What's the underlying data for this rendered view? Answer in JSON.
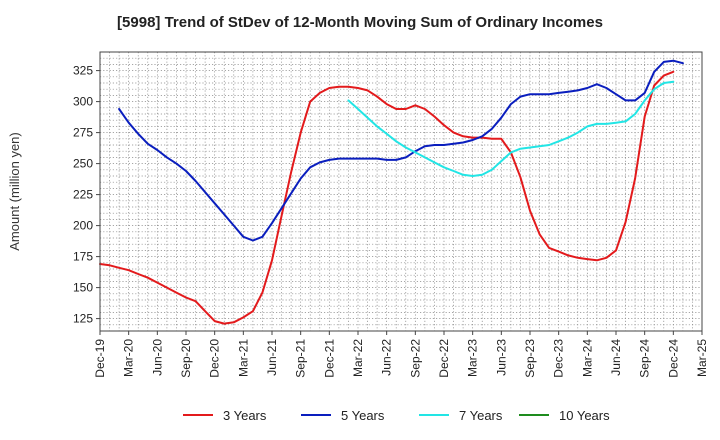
{
  "chart_data": {
    "type": "line",
    "title": "[5998]  Trend of StDev of 12-Month Moving Sum of Ordinary Incomes",
    "ylabel": "Amount (million yen)",
    "xlabel": "",
    "ylim": [
      115,
      340
    ],
    "yticks": [
      125,
      150,
      175,
      200,
      225,
      250,
      275,
      300,
      325
    ],
    "xlim": [
      "2019-12",
      "2025-03"
    ],
    "xticks": [
      "Dec-19",
      "Mar-20",
      "Jun-20",
      "Sep-20",
      "Dec-20",
      "Mar-21",
      "Jun-21",
      "Sep-21",
      "Dec-21",
      "Mar-22",
      "Jun-22",
      "Sep-22",
      "Dec-22",
      "Mar-23",
      "Jun-23",
      "Sep-23",
      "Dec-23",
      "Mar-24",
      "Jun-24",
      "Sep-24",
      "Dec-24",
      "Mar-25"
    ],
    "grid": true,
    "legend_position": "bottom",
    "series": [
      {
        "name": "3 Years",
        "color": "#e31a1c",
        "start": "2019-12",
        "values": [
          169,
          168,
          166,
          164,
          161,
          158,
          154,
          150,
          146,
          142,
          139,
          131,
          123,
          121,
          122,
          126,
          131,
          146,
          172,
          208,
          243,
          275,
          300,
          307,
          311,
          312,
          312,
          311,
          309,
          304,
          298,
          294,
          294,
          297,
          294,
          288,
          281,
          275,
          272,
          271,
          271,
          270,
          270,
          259,
          239,
          212,
          193,
          182,
          179,
          176,
          174,
          173,
          172,
          174,
          180,
          203,
          238,
          288,
          313,
          321,
          324
        ]
      },
      {
        "name": "5 Years",
        "color": "#0a1ebe",
        "start": "2020-02",
        "values": [
          294,
          283,
          274,
          266,
          261,
          255,
          250,
          244,
          236,
          227,
          218,
          209,
          200,
          191,
          188,
          191,
          202,
          214,
          226,
          238,
          247,
          251,
          253,
          254,
          254,
          254,
          254,
          254,
          253,
          253,
          255,
          260,
          264,
          265,
          265,
          266,
          267,
          269,
          272,
          278,
          287,
          298,
          304,
          306,
          306,
          306,
          307,
          308,
          309,
          311,
          314,
          311,
          306,
          301,
          301,
          307,
          324,
          332,
          333,
          331
        ]
      },
      {
        "name": "7 Years",
        "color": "#22e5e5",
        "start": "2022-02",
        "values": [
          301,
          294,
          287,
          280,
          274,
          268,
          263,
          259,
          255,
          251,
          247,
          244,
          241,
          240,
          241,
          245,
          252,
          259,
          262,
          263,
          264,
          265,
          268,
          271,
          275,
          280,
          282,
          282,
          283,
          284,
          290,
          301,
          310,
          315,
          316
        ]
      },
      {
        "name": "10 Years",
        "color": "#1e8c1e",
        "start": "2019-12",
        "values": []
      }
    ]
  }
}
